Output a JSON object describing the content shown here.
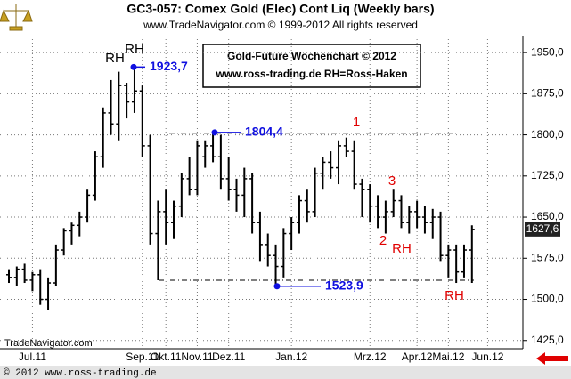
{
  "chart_data": {
    "type": "ohlc",
    "title": "GC3-057:  Comex Gold (Elec) Cont Liq  (Weekly bars)",
    "subtitle": "www.TradeNavigator.com © 1999-2012 All rights reserved",
    "info_box": [
      "Gold-Future Wochenchart © 2012",
      "www.ross-trading.de  RH=Ross-Haken"
    ],
    "watermark": "TradeNavigator.com",
    "footer": "© 2012  www.ross-trading.de",
    "categories": [
      null,
      null,
      null,
      "Jul.11",
      null,
      null,
      null,
      null,
      null,
      null,
      null,
      null,
      null,
      null,
      null,
      null,
      null,
      "Sep.11",
      null,
      null,
      "Okt.11",
      null,
      null,
      null,
      "Nov.11",
      null,
      null,
      null,
      "Dez.11",
      null,
      null,
      null,
      null,
      null,
      null,
      null,
      "Jan.12",
      null,
      null,
      null,
      null,
      null,
      null,
      null,
      null,
      null,
      "Mrz.12",
      null,
      null,
      null,
      null,
      null,
      "Apr.12",
      null,
      null,
      null,
      "Mai.12",
      null,
      null,
      null,
      null,
      "Jun.12"
    ],
    "series": [
      {
        "color": "#000000",
        "open": [
          1545,
          1540,
          1555,
          1535,
          1545,
          1500,
          1530,
          1590,
          1625,
          1635,
          1650,
          1690,
          1760,
          1840,
          1820,
          1890,
          1860,
          1880,
          1780,
          1620,
          1660,
          1640,
          1670,
          1720,
          1700,
          1760,
          1780,
          1760,
          1720,
          1700,
          1690,
          1720,
          1640,
          1600,
          1580,
          1560,
          1620,
          1640,
          1680,
          1660,
          1730,
          1750,
          1740,
          1780,
          1770,
          1710,
          1700,
          1670,
          1650,
          1660,
          1680,
          1640,
          1660,
          1650,
          1640,
          1650,
          1580,
          1590,
          1550,
          1590,
          null,
          null
        ],
        "high": [
          1555,
          1560,
          1565,
          1550,
          1555,
          1540,
          1600,
          1630,
          1640,
          1660,
          1700,
          1770,
          1850,
          1900,
          1915,
          1895,
          1923.7,
          1890,
          1800,
          1680,
          1700,
          1680,
          1730,
          1760,
          1790,
          1790,
          1804.4,
          1800,
          1760,
          1720,
          1740,
          1730,
          1660,
          1620,
          1600,
          1630,
          1650,
          1690,
          1700,
          1740,
          1760,
          1770,
          1790,
          1795,
          1790,
          1720,
          1710,
          1690,
          1680,
          1700,
          1690,
          1670,
          1680,
          1670,
          1665,
          1660,
          1600,
          1600,
          1600,
          1635,
          null,
          null
        ],
        "low": [
          1530,
          1525,
          1530,
          1515,
          1490,
          1480,
          1525,
          1580,
          1600,
          1615,
          1640,
          1680,
          1740,
          1800,
          1790,
          1830,
          1840,
          1760,
          1600,
          1535,
          1600,
          1610,
          1650,
          1690,
          1690,
          1740,
          1750,
          1700,
          1680,
          1660,
          1650,
          1620,
          1570,
          1560,
          1523.9,
          1540,
          1590,
          1620,
          1640,
          1650,
          1700,
          1720,
          1710,
          1760,
          1700,
          1650,
          1640,
          1630,
          1620,
          1650,
          1630,
          1620,
          1630,
          1620,
          1610,
          1570,
          1540,
          1530,
          1540,
          1530,
          null,
          null
        ],
        "close": [
          1540,
          1555,
          1535,
          1545,
          1500,
          1530,
          1590,
          1625,
          1635,
          1650,
          1690,
          1760,
          1840,
          1820,
          1890,
          1860,
          1880,
          1780,
          1620,
          1660,
          1640,
          1670,
          1720,
          1700,
          1780,
          1780,
          1760,
          1720,
          1700,
          1690,
          1720,
          1640,
          1600,
          1580,
          1560,
          1620,
          1640,
          1680,
          1660,
          1730,
          1750,
          1740,
          1780,
          1770,
          1710,
          1700,
          1670,
          1650,
          1660,
          1680,
          1640,
          1660,
          1650,
          1640,
          1650,
          1580,
          1590,
          1550,
          1590,
          1627.6,
          null,
          null
        ]
      }
    ],
    "ylim": [
      1410,
      1981
    ],
    "yticks": [
      {
        "value": 1425,
        "label": "1425,0"
      },
      {
        "value": 1500,
        "label": "1500,0"
      },
      {
        "value": 1575,
        "label": "1575,0"
      },
      {
        "value": 1650,
        "label": "1650,0"
      },
      {
        "value": 1725,
        "label": "1725,0"
      },
      {
        "value": 1800,
        "label": "1800,0"
      },
      {
        "value": 1875,
        "label": "1875,0"
      },
      {
        "value": 1950,
        "label": "1950,0"
      }
    ],
    "grid": true,
    "last_price": {
      "value": 1627.6,
      "label": "1627,6"
    },
    "price_labels": [
      {
        "value": 1923.7,
        "label": "1923,7"
      },
      {
        "value": 1804.4,
        "label": "1804,4"
      },
      {
        "value": 1523.9,
        "label": "1523,9"
      }
    ],
    "price_label_color": "#1010e0",
    "horizontal_lines": [
      1803,
      1535
    ],
    "annotations": [
      {
        "text": "RH",
        "color": "#000000"
      },
      {
        "text": "RH",
        "color": "#000000"
      },
      {
        "text": "1",
        "color": "#e00000"
      },
      {
        "text": "3",
        "color": "#e00000"
      },
      {
        "text": "2",
        "color": "#e00000"
      },
      {
        "text": "RH",
        "color": "#e00000"
      },
      {
        "text": "RH",
        "color": "#e00000"
      }
    ]
  }
}
